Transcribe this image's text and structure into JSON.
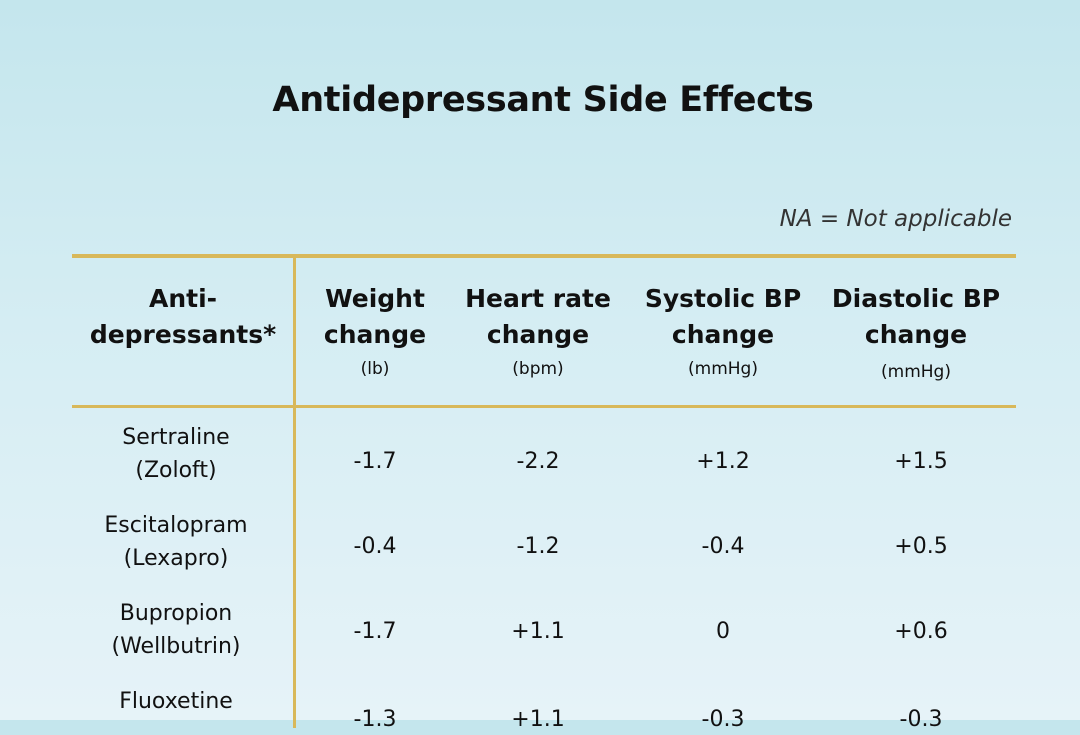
{
  "title": "Antidepressant Side Effects",
  "note": "NA = Not applicable",
  "headers": {
    "drug": {
      "line1": "Anti-",
      "line2": "depressants*"
    },
    "weight": {
      "line1": "Weight",
      "line2": "change",
      "unit": "(lb)"
    },
    "heart": {
      "line1": "Heart rate",
      "line2": "change",
      "unit": "(bpm)"
    },
    "systolic": {
      "line1": "Systolic BP",
      "line2": "change",
      "unit": "(mmHg)"
    },
    "diastolic": {
      "line1": "Diastolic BP",
      "line2": "change",
      "unit": "(mmHg)"
    }
  },
  "rows": [
    {
      "name": "Sertraline",
      "brand": "(Zoloft)",
      "weight": "-1.7",
      "heart": "-2.2",
      "systolic": "+1.2",
      "diastolic": "+1.5"
    },
    {
      "name": "Escitalopram",
      "brand": "(Lexapro)",
      "weight": "-0.4",
      "heart": "-1.2",
      "systolic": "-0.4",
      "diastolic": "+0.5"
    },
    {
      "name": "Bupropion",
      "brand": "(Wellbutrin)",
      "weight": "-1.7",
      "heart": "+1.1",
      "systolic": "0",
      "diastolic": "+0.6"
    },
    {
      "name": "Fluoxetine",
      "brand": "",
      "weight": "-1.3",
      "heart": "+1.1",
      "systolic": "-0.3",
      "diastolic": "-0.3"
    }
  ],
  "colors": {
    "rule": "#d8b85a",
    "background_top": "#c4e6ed",
    "background_bottom": "#e6f3f8",
    "text": "#111111"
  }
}
